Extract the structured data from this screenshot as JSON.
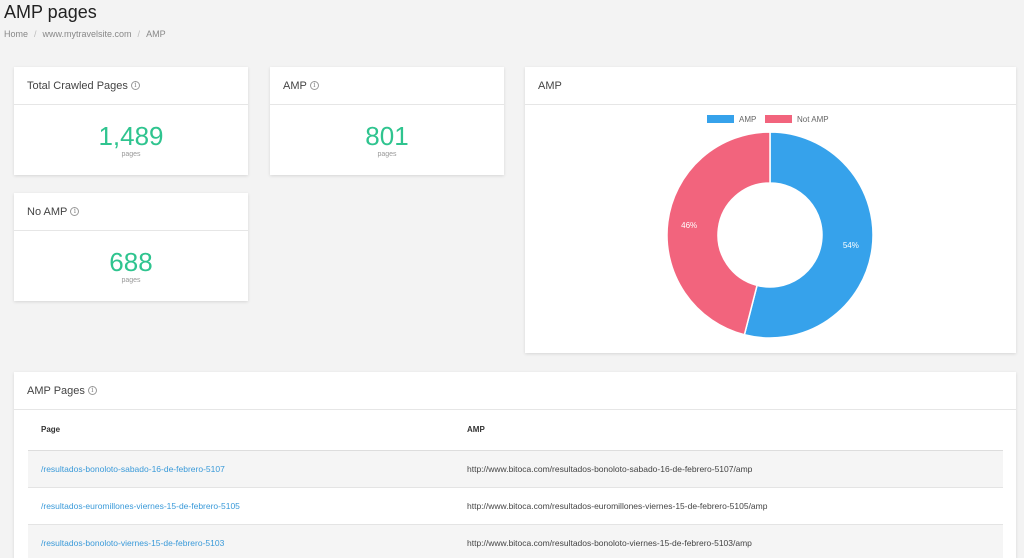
{
  "page": {
    "title": "AMP pages",
    "breadcrumb": [
      "Home",
      "www.mytravelsite.com",
      "AMP"
    ]
  },
  "stats": {
    "total_crawled": {
      "label": "Total Crawled Pages",
      "value": "1,489",
      "unit": "pages"
    },
    "amp": {
      "label": "AMP",
      "value": "801",
      "unit": "pages"
    },
    "no_amp": {
      "label": "No AMP",
      "value": "688",
      "unit": "pages"
    }
  },
  "chart_card": {
    "title": "AMP"
  },
  "chart_data": {
    "type": "pie",
    "donut": true,
    "title": "",
    "categories": [
      "AMP",
      "Not AMP"
    ],
    "values": [
      54,
      46
    ],
    "labels": [
      "54%",
      "46%"
    ],
    "colors": [
      "#36a2eb",
      "#f2647d"
    ],
    "legend": "top"
  },
  "amp_table": {
    "title": "AMP Pages",
    "columns": [
      "Page",
      "AMP"
    ],
    "rows": [
      {
        "page": "/resultados-bonoloto-sabado-16-de-febrero-5107",
        "amp": "http://www.bitoca.com/resultados-bonoloto-sabado-16-de-febrero-5107/amp"
      },
      {
        "page": "/resultados-euromillones-viernes-15-de-febrero-5105",
        "amp": "http://www.bitoca.com/resultados-euromillones-viernes-15-de-febrero-5105/amp"
      },
      {
        "page": "/resultados-bonoloto-viernes-15-de-febrero-5103",
        "amp": "http://www.bitoca.com/resultados-bonoloto-viernes-15-de-febrero-5103/amp"
      }
    ]
  },
  "icons": {
    "info": "info-icon",
    "info_glyph": "i"
  }
}
